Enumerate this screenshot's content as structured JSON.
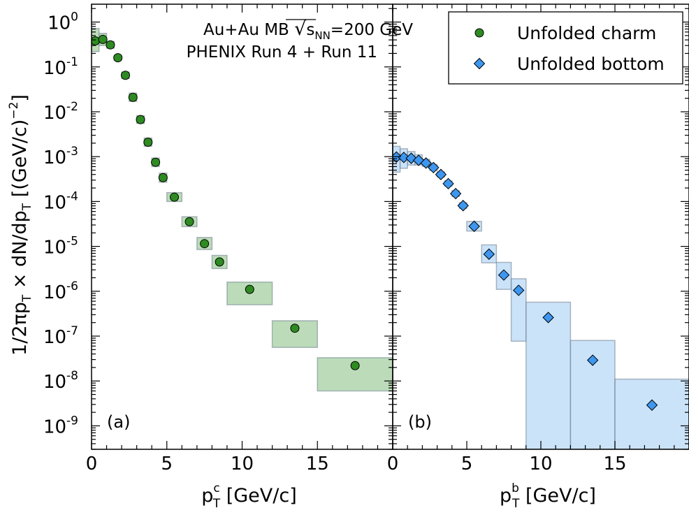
{
  "chart_data": [
    {
      "type": "scatter",
      "panel_label": "(a)",
      "xlabel": "p_T^c  [GeV/c]",
      "xlabel_parts": {
        "base": "p",
        "sub": "T",
        "sup": "c",
        "unit": "[GeV/c]"
      },
      "ylabel": "1/2πp_T × dN/dp_T [(GeV/c)^-2]",
      "ylabel_parts": {
        "pre": "1/2πp",
        "mid1": " × dN/dp",
        "post": " [(GeV/c)",
        "sup": "−2",
        "close": "]"
      },
      "xlim": [
        0,
        20
      ],
      "ylim": [
        3e-10,
        2.5
      ],
      "yscale": "log",
      "x_ticks": [
        0,
        5,
        10,
        15
      ],
      "y_ticks": [
        {
          "value": 1,
          "mantissa": "10",
          "exp": "0"
        },
        {
          "value": 0.1,
          "mantissa": "10",
          "exp": "-1"
        },
        {
          "value": 0.01,
          "mantissa": "10",
          "exp": "-2"
        },
        {
          "value": 0.001,
          "mantissa": "10",
          "exp": "-3"
        },
        {
          "value": 0.0001,
          "mantissa": "10",
          "exp": "-4"
        },
        {
          "value": 1e-05,
          "mantissa": "10",
          "exp": "-5"
        },
        {
          "value": 1e-06,
          "mantissa": "10",
          "exp": "-6"
        },
        {
          "value": 1e-07,
          "mantissa": "10",
          "exp": "-7"
        },
        {
          "value": 1e-08,
          "mantissa": "10",
          "exp": "-8"
        },
        {
          "value": 1e-09,
          "mantissa": "10",
          "exp": "-9"
        }
      ],
      "annotation": {
        "line1_pre": "Au+Au MB ",
        "line1_sub": "NN",
        "line1_post": "=200 GeV",
        "line2": "PHENIX Run 4 + Run 11"
      },
      "series": [
        {
          "name": "Unfolded charm",
          "color": "#2e8b22",
          "box_color": "#8fc48a",
          "marker": "circle",
          "points": [
            {
              "x": 0.25,
              "y": 0.38,
              "xlo": 0.0,
              "xhi": 0.5,
              "ylo": 0.22,
              "yhi": 0.72
            },
            {
              "x": 0.75,
              "y": 0.41,
              "xlo": 0.5,
              "xhi": 1.0,
              "ylo": 0.3,
              "yhi": 0.56
            },
            {
              "x": 1.25,
              "y": 0.31,
              "xlo": 1.0,
              "xhi": 1.5,
              "ylo": 0.26,
              "yhi": 0.37
            },
            {
              "x": 1.75,
              "y": 0.16,
              "xlo": 1.5,
              "xhi": 2.0,
              "ylo": 0.14,
              "yhi": 0.18
            },
            {
              "x": 2.25,
              "y": 0.065,
              "xlo": 2.0,
              "xhi": 2.5,
              "ylo": 0.055,
              "yhi": 0.077
            },
            {
              "x": 2.75,
              "y": 0.021,
              "xlo": 2.5,
              "xhi": 3.0,
              "ylo": 0.017,
              "yhi": 0.026
            },
            {
              "x": 3.25,
              "y": 0.0067,
              "xlo": 3.0,
              "xhi": 3.5,
              "ylo": 0.0055,
              "yhi": 0.0082
            },
            {
              "x": 3.75,
              "y": 0.0021,
              "xlo": 3.5,
              "xhi": 4.0,
              "ylo": 0.0017,
              "yhi": 0.0026
            },
            {
              "x": 4.25,
              "y": 0.00075,
              "xlo": 4.0,
              "xhi": 4.5,
              "ylo": 0.0006,
              "yhi": 0.00093
            },
            {
              "x": 4.75,
              "y": 0.00034,
              "xlo": 4.5,
              "xhi": 5.0,
              "ylo": 0.00027,
              "yhi": 0.00043
            },
            {
              "x": 5.5,
              "y": 0.000125,
              "xlo": 5.0,
              "xhi": 6.0,
              "ylo": 0.0001,
              "yhi": 0.000158
            },
            {
              "x": 6.5,
              "y": 3.55e-05,
              "xlo": 6.0,
              "xhi": 7.0,
              "ylo": 2.75e-05,
              "yhi": 4.58e-05
            },
            {
              "x": 7.5,
              "y": 1.15e-05,
              "xlo": 7.0,
              "xhi": 8.0,
              "ylo": 8.5e-06,
              "yhi": 1.58e-05
            },
            {
              "x": 8.5,
              "y": 4.5e-06,
              "xlo": 8.0,
              "xhi": 9.0,
              "ylo": 3.2e-06,
              "yhi": 6.3e-06
            },
            {
              "x": 10.5,
              "y": 1.1e-06,
              "xlo": 9.0,
              "xhi": 12.0,
              "ylo": 5e-07,
              "yhi": 1.6e-06
            },
            {
              "x": 13.5,
              "y": 1.5e-07,
              "xlo": 12.0,
              "xhi": 15.0,
              "ylo": 5.6e-08,
              "yhi": 2.2e-07
            },
            {
              "x": 17.5,
              "y": 2.2e-08,
              "xlo": 15.0,
              "xhi": 20.0,
              "ylo": 6e-09,
              "yhi": 3.3e-08
            }
          ]
        }
      ]
    },
    {
      "type": "scatter",
      "panel_label": "(b)",
      "xlabel": "p_T^b  [GeV/c]",
      "xlabel_parts": {
        "base": "p",
        "sub": "T",
        "sup": "b",
        "unit": "[GeV/c]"
      },
      "xlim": [
        0,
        20
      ],
      "ylim": [
        3e-10,
        2.5
      ],
      "yscale": "log",
      "x_ticks": [
        0,
        5,
        10,
        15
      ],
      "legend": {
        "position": "top-right"
      },
      "series": [
        {
          "name": "Unfolded bottom",
          "color": "#3d97f0",
          "box_color": "#a9d0f5",
          "marker": "diamond",
          "points": [
            {
              "x": 0.25,
              "y": 0.00098,
              "xlo": 0.0,
              "xhi": 0.5,
              "ylo": 0.00045,
              "yhi": 0.0017
            },
            {
              "x": 0.75,
              "y": 0.00096,
              "xlo": 0.5,
              "xhi": 1.0,
              "ylo": 0.00055,
              "yhi": 0.0015
            },
            {
              "x": 1.25,
              "y": 0.00092,
              "xlo": 1.0,
              "xhi": 1.5,
              "ylo": 0.00065,
              "yhi": 0.0013
            },
            {
              "x": 1.75,
              "y": 0.00083,
              "xlo": 1.5,
              "xhi": 2.0,
              "ylo": 0.00065,
              "yhi": 0.0011
            },
            {
              "x": 2.25,
              "y": 0.00072,
              "xlo": 2.0,
              "xhi": 2.5,
              "ylo": 0.0006,
              "yhi": 0.00087
            },
            {
              "x": 2.75,
              "y": 0.00057,
              "xlo": 2.5,
              "xhi": 3.0,
              "ylo": 0.00049,
              "yhi": 0.00067
            },
            {
              "x": 3.25,
              "y": 0.0004,
              "xlo": 3.0,
              "xhi": 3.5,
              "ylo": 0.00035,
              "yhi": 0.00046
            },
            {
              "x": 3.75,
              "y": 0.00025,
              "xlo": 3.5,
              "xhi": 4.0,
              "ylo": 0.00022,
              "yhi": 0.00029
            },
            {
              "x": 4.25,
              "y": 0.00015,
              "xlo": 4.0,
              "xhi": 4.5,
              "ylo": 0.00013,
              "yhi": 0.000175
            },
            {
              "x": 4.75,
              "y": 8.1e-05,
              "xlo": 4.5,
              "xhi": 5.0,
              "ylo": 7e-05,
              "yhi": 9.4e-05
            },
            {
              "x": 5.5,
              "y": 2.8e-05,
              "xlo": 5.0,
              "xhi": 6.0,
              "ylo": 2.2e-05,
              "yhi": 3.6e-05
            },
            {
              "x": 6.5,
              "y": 6.7e-06,
              "xlo": 6.0,
              "xhi": 7.0,
              "ylo": 4.3e-06,
              "yhi": 1.08e-05
            },
            {
              "x": 7.5,
              "y": 2.3e-06,
              "xlo": 7.0,
              "xhi": 8.0,
              "ylo": 1.1e-06,
              "yhi": 4.4e-06
            },
            {
              "x": 8.5,
              "y": 1.05e-06,
              "xlo": 8.0,
              "xhi": 9.0,
              "ylo": 7.7e-08,
              "yhi": 1.9e-06
            },
            {
              "x": 10.5,
              "y": 2.6e-07,
              "xlo": 9.0,
              "xhi": 12.0,
              "ylo": 3e-10,
              "yhi": 5.7e-07
            },
            {
              "x": 13.5,
              "y": 2.9e-08,
              "xlo": 12.0,
              "xhi": 15.0,
              "ylo": 3e-10,
              "yhi": 8e-08
            },
            {
              "x": 17.5,
              "y": 2.9e-09,
              "xlo": 15.0,
              "xhi": 20.0,
              "ylo": 3e-10,
              "yhi": 1.1e-08
            }
          ]
        }
      ]
    }
  ]
}
